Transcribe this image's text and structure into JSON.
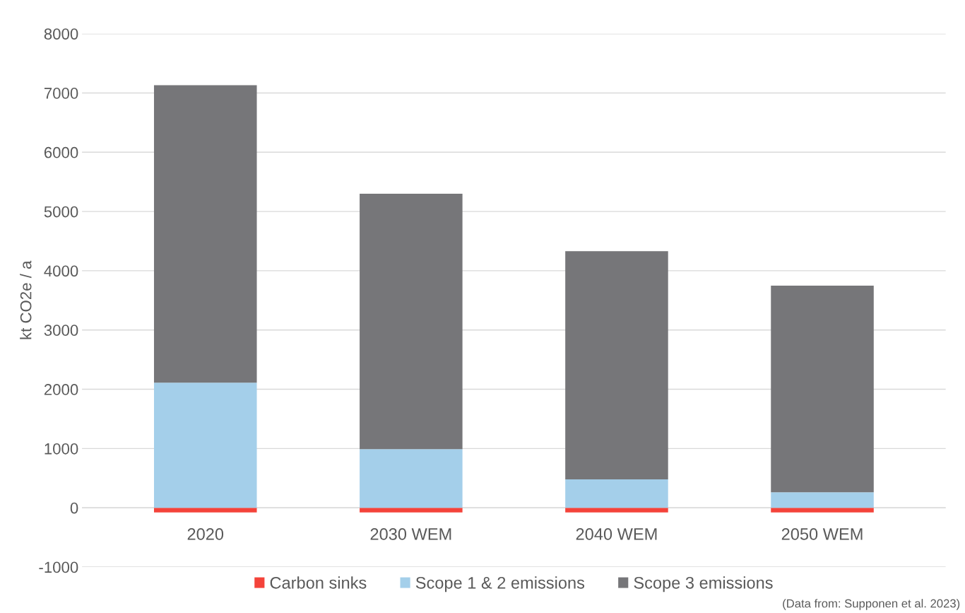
{
  "chart_data": {
    "type": "bar",
    "stacked": true,
    "ylabel": "kt CO2e / a",
    "categories": [
      "2020",
      "2030 WEM",
      "2040 WEM",
      "2050 WEM"
    ],
    "series": [
      {
        "name": "Carbon sinks",
        "color": "#f4433a",
        "values": [
          -80,
          -80,
          -80,
          -80
        ]
      },
      {
        "name": "Scope 1 & 2 emissions",
        "color": "#a4cfea",
        "values": [
          2110,
          990,
          480,
          260
        ]
      },
      {
        "name": "Scope 3 emissions",
        "color": "#767679",
        "values": [
          5020,
          4310,
          3850,
          3490
        ]
      }
    ],
    "ylim": [
      -1000,
      8000
    ],
    "yticks": [
      -1000,
      0,
      1000,
      2000,
      3000,
      4000,
      5000,
      6000,
      7000,
      8000
    ],
    "grid": "y",
    "legend": "bottom",
    "annotations": [
      "(Data from: Supponen et al. 2023)"
    ]
  }
}
